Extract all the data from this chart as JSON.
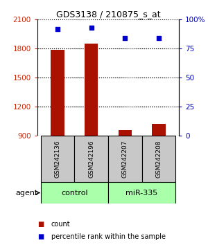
{
  "title": "GDS3138 / 210875_s_at",
  "samples": [
    "GSM242136",
    "GSM242196",
    "GSM242207",
    "GSM242208"
  ],
  "counts": [
    1790,
    1850,
    960,
    1020
  ],
  "percentiles": [
    92,
    93,
    84,
    84
  ],
  "ylim_left": [
    900,
    2100
  ],
  "yticks_left": [
    900,
    1200,
    1500,
    1800,
    2100
  ],
  "ylim_right": [
    0,
    100
  ],
  "yticks_right": [
    0,
    25,
    50,
    75,
    100
  ],
  "groups": [
    {
      "label": "control",
      "indices": [
        0,
        1
      ],
      "color": "#AAFFAA"
    },
    {
      "label": "miR-335",
      "indices": [
        2,
        3
      ],
      "color": "#AAFFAA"
    }
  ],
  "bar_color": "#AA1100",
  "dot_color": "#0000CC",
  "bar_width": 0.4,
  "legend_count_label": "count",
  "legend_pct_label": "percentile rank within the sample",
  "agent_label": "agent",
  "left_axis_color": "#CC2200",
  "right_axis_color": "#0000BB",
  "grid_color": "#000000",
  "sample_box_color": "#C8C8C8",
  "figsize": [
    3.0,
    3.54
  ],
  "dpi": 100
}
